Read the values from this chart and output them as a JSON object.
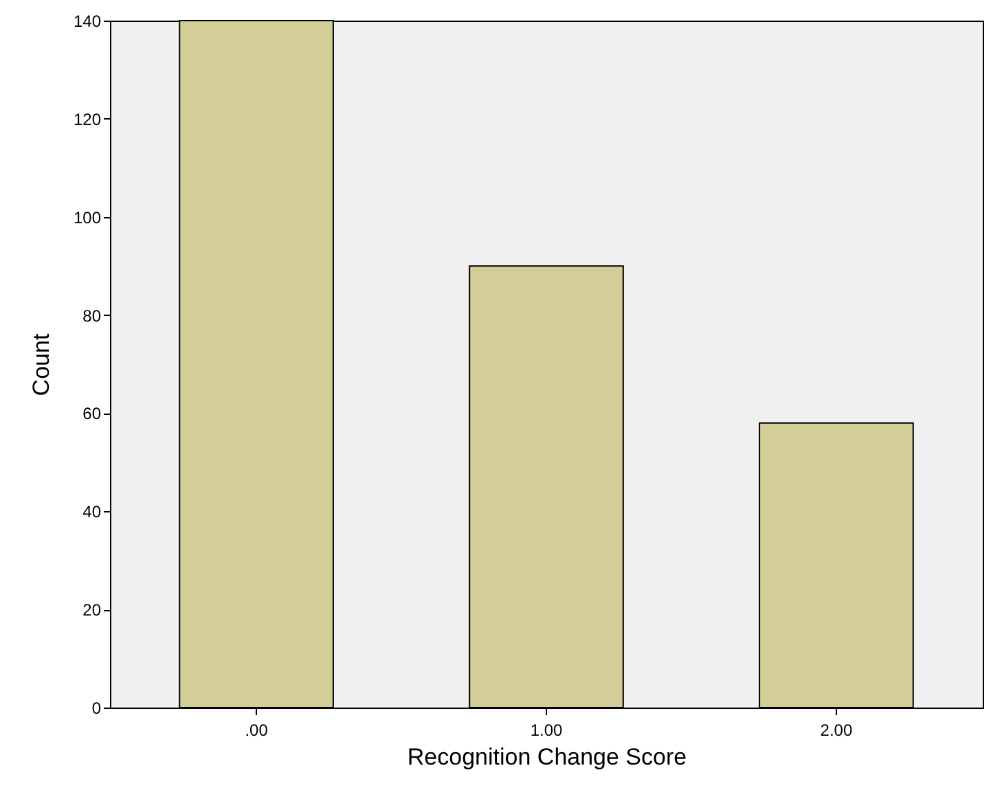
{
  "chart_data": {
    "type": "bar",
    "xlabel": "Recognition Change Score",
    "ylabel": "Count",
    "categories": [
      ".00",
      "1.00",
      "2.00"
    ],
    "values": [
      140,
      90,
      58
    ],
    "color": "#d3ce97",
    "ylim": [
      0,
      140
    ],
    "yticks": [
      0,
      20,
      40,
      60,
      80,
      100,
      120,
      140
    ],
    "grid": false
  }
}
